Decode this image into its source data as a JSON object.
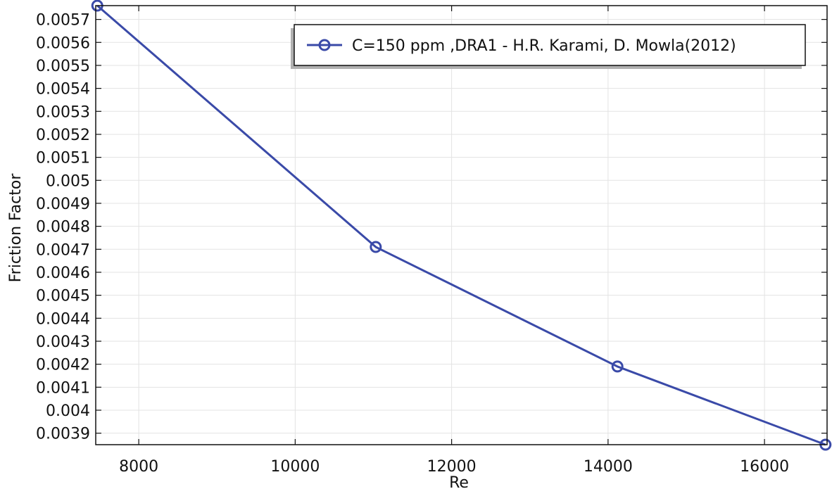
{
  "chart_data": {
    "type": "line",
    "xlabel": "Re",
    "ylabel": "Friction Factor",
    "xlim": [
      7450,
      16800
    ],
    "ylim": [
      0.00385,
      0.00576
    ],
    "grid": true,
    "legend_position": "top-right",
    "x_ticks": [
      8000,
      10000,
      12000,
      14000,
      16000
    ],
    "x_tick_labels": [
      "8000",
      "10000",
      "12000",
      "14000",
      "16000"
    ],
    "y_ticks": [
      0.0039,
      0.004,
      0.0041,
      0.0042,
      0.0043,
      0.0044,
      0.0045,
      0.0046,
      0.0047,
      0.0048,
      0.0049,
      0.005,
      0.0051,
      0.0052,
      0.0053,
      0.0054,
      0.0055,
      0.0056,
      0.0057
    ],
    "y_tick_labels": [
      "0.0039",
      "0.004",
      "0.0041",
      "0.0042",
      "0.0043",
      "0.0044",
      "0.0045",
      "0.0046",
      "0.0047",
      "0.0048",
      "0.0049",
      "0.005",
      "0.0051",
      "0.0052",
      "0.0053",
      "0.0054",
      "0.0055",
      "0.0056",
      "0.0057"
    ],
    "series": [
      {
        "name": "C=150 ppm ,DRA1 - H.R. Karami, D. Mowla(2012)",
        "color": "#3a4aa8",
        "marker": "circle",
        "x": [
          7470,
          11030,
          14120,
          16780
        ],
        "y": [
          0.00576,
          0.00471,
          0.00419,
          0.00385
        ]
      }
    ]
  }
}
